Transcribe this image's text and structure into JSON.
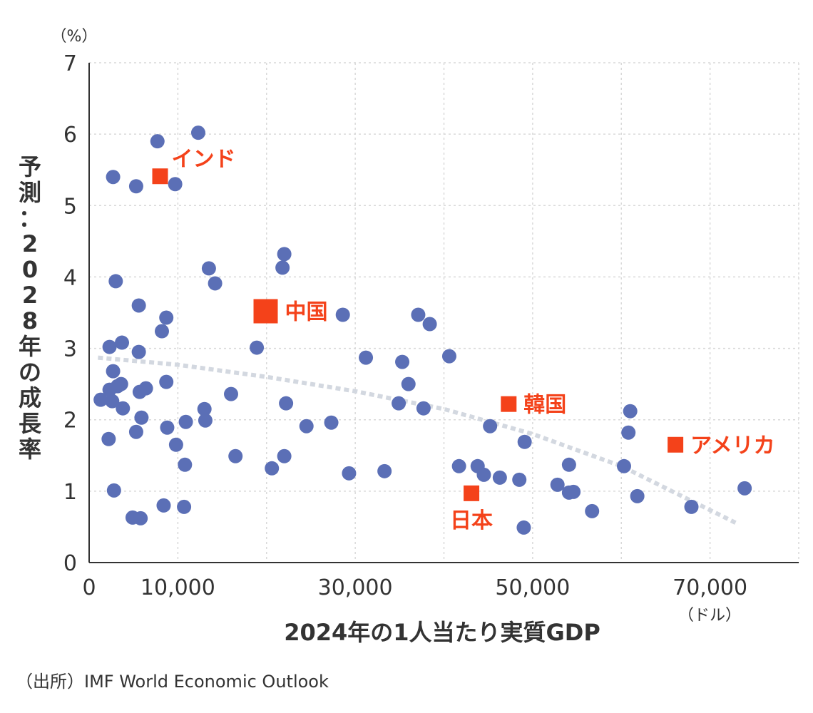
{
  "chart_data": {
    "type": "scatter",
    "title": "",
    "xlabel": "2024年の1人当たり実質GDP",
    "ylabel": "予測：2028年の成長率",
    "x_unit": "（ドル）",
    "y_unit": "（%）",
    "xlim": [
      0,
      80000
    ],
    "ylim": [
      0,
      7
    ],
    "x_ticks": [
      0,
      10000,
      30000,
      50000,
      70000
    ],
    "x_tick_labels": [
      "0",
      "10,000",
      "30,000",
      "50,000",
      "70,000"
    ],
    "y_ticks": [
      0,
      1,
      2,
      3,
      4,
      5,
      6,
      7
    ],
    "y_tick_labels": [
      "0",
      "1",
      "2",
      "3",
      "4",
      "5",
      "6",
      "7"
    ],
    "grid": true,
    "colors": {
      "points": "#5b6fb6",
      "highlight": "#f4421a",
      "trend": "#d3d8e0",
      "grid": "#d9d9d9",
      "axis": "#333333"
    },
    "points": [
      {
        "x": 12300,
        "y": 6.02
      },
      {
        "x": 7700,
        "y": 5.9
      },
      {
        "x": 2700,
        "y": 5.4
      },
      {
        "x": 5300,
        "y": 5.27
      },
      {
        "x": 9700,
        "y": 5.3
      },
      {
        "x": 22000,
        "y": 4.32
      },
      {
        "x": 21800,
        "y": 4.13
      },
      {
        "x": 13500,
        "y": 4.12
      },
      {
        "x": 3000,
        "y": 3.94
      },
      {
        "x": 14200,
        "y": 3.91
      },
      {
        "x": 5600,
        "y": 3.6
      },
      {
        "x": 8700,
        "y": 3.43
      },
      {
        "x": 28600,
        "y": 3.47
      },
      {
        "x": 37100,
        "y": 3.47
      },
      {
        "x": 38400,
        "y": 3.34
      },
      {
        "x": 8200,
        "y": 3.24
      },
      {
        "x": 3700,
        "y": 3.08
      },
      {
        "x": 2300,
        "y": 3.02
      },
      {
        "x": 5600,
        "y": 2.95
      },
      {
        "x": 18900,
        "y": 3.01
      },
      {
        "x": 31200,
        "y": 2.87
      },
      {
        "x": 35300,
        "y": 2.81
      },
      {
        "x": 40600,
        "y": 2.89
      },
      {
        "x": 2700,
        "y": 2.68
      },
      {
        "x": 8700,
        "y": 2.53
      },
      {
        "x": 3600,
        "y": 2.5
      },
      {
        "x": 3200,
        "y": 2.47
      },
      {
        "x": 2300,
        "y": 2.42
      },
      {
        "x": 6400,
        "y": 2.44
      },
      {
        "x": 5700,
        "y": 2.39
      },
      {
        "x": 36000,
        "y": 2.5
      },
      {
        "x": 16000,
        "y": 2.36
      },
      {
        "x": 1300,
        "y": 2.28
      },
      {
        "x": 2600,
        "y": 2.26
      },
      {
        "x": 22200,
        "y": 2.23
      },
      {
        "x": 34900,
        "y": 2.23
      },
      {
        "x": 3800,
        "y": 2.16
      },
      {
        "x": 13000,
        "y": 2.15
      },
      {
        "x": 37700,
        "y": 2.16
      },
      {
        "x": 5900,
        "y": 2.03
      },
      {
        "x": 13100,
        "y": 1.99
      },
      {
        "x": 10900,
        "y": 1.97
      },
      {
        "x": 27300,
        "y": 1.96
      },
      {
        "x": 24500,
        "y": 1.91
      },
      {
        "x": 8800,
        "y": 1.89
      },
      {
        "x": 45200,
        "y": 1.91
      },
      {
        "x": 61000,
        "y": 2.12
      },
      {
        "x": 5300,
        "y": 1.83
      },
      {
        "x": 60800,
        "y": 1.82
      },
      {
        "x": 2200,
        "y": 1.73
      },
      {
        "x": 9800,
        "y": 1.65
      },
      {
        "x": 49100,
        "y": 1.69
      },
      {
        "x": 16500,
        "y": 1.49
      },
      {
        "x": 22000,
        "y": 1.49
      },
      {
        "x": 10800,
        "y": 1.37
      },
      {
        "x": 54100,
        "y": 1.37
      },
      {
        "x": 41700,
        "y": 1.35
      },
      {
        "x": 43800,
        "y": 1.35
      },
      {
        "x": 20600,
        "y": 1.32
      },
      {
        "x": 33300,
        "y": 1.28
      },
      {
        "x": 29300,
        "y": 1.25
      },
      {
        "x": 44500,
        "y": 1.23
      },
      {
        "x": 46300,
        "y": 1.19
      },
      {
        "x": 48500,
        "y": 1.16
      },
      {
        "x": 60300,
        "y": 1.35
      },
      {
        "x": 52800,
        "y": 1.09
      },
      {
        "x": 54100,
        "y": 0.98
      },
      {
        "x": 54600,
        "y": 0.99
      },
      {
        "x": 61800,
        "y": 0.93
      },
      {
        "x": 2800,
        "y": 1.01
      },
      {
        "x": 73900,
        "y": 1.04
      },
      {
        "x": 8400,
        "y": 0.8
      },
      {
        "x": 10700,
        "y": 0.78
      },
      {
        "x": 67900,
        "y": 0.78
      },
      {
        "x": 56700,
        "y": 0.72
      },
      {
        "x": 4900,
        "y": 0.63
      },
      {
        "x": 5800,
        "y": 0.62
      },
      {
        "x": 49000,
        "y": 0.49
      }
    ],
    "highlights": [
      {
        "label": "インド",
        "x": 8000,
        "y": 5.41,
        "label_pos": "upper-right"
      },
      {
        "label": "中国",
        "x": 19900,
        "y": 3.52,
        "label_pos": "right",
        "large": true
      },
      {
        "label": "韓国",
        "x": 47300,
        "y": 2.22,
        "label_pos": "right"
      },
      {
        "label": "アメリカ",
        "x": 66100,
        "y": 1.65,
        "label_pos": "right"
      },
      {
        "label": "日本",
        "x": 43100,
        "y": 0.97,
        "label_pos": "below"
      }
    ],
    "trend": [
      {
        "x": 1000,
        "y": 2.87
      },
      {
        "x": 10000,
        "y": 2.77
      },
      {
        "x": 20000,
        "y": 2.6
      },
      {
        "x": 30000,
        "y": 2.4
      },
      {
        "x": 40000,
        "y": 2.15
      },
      {
        "x": 50000,
        "y": 1.8
      },
      {
        "x": 60000,
        "y": 1.35
      },
      {
        "x": 73000,
        "y": 0.55
      }
    ]
  },
  "source": "（出所）IMF World Economic Outlook"
}
